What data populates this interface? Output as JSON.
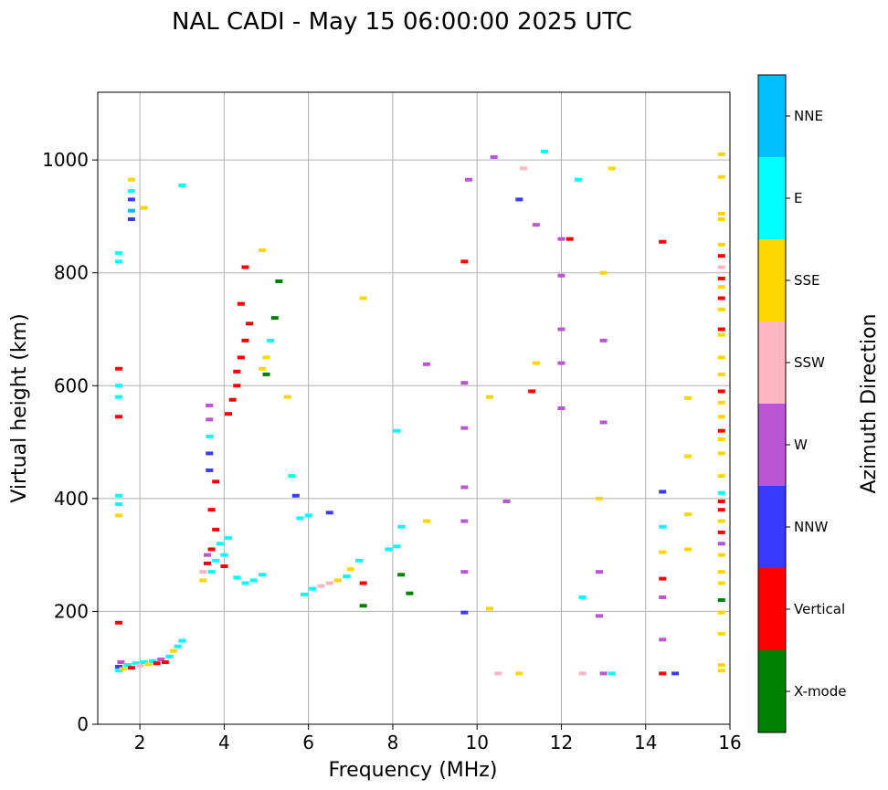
{
  "chart_data": {
    "type": "scatter",
    "title": "NAL CADI - May 15 06:00:00 2025 UTC",
    "xlabel": "Frequency (MHz)",
    "ylabel": "Virtual height (km)",
    "xlim": [
      1,
      16
    ],
    "ylim": [
      0,
      1120
    ],
    "xticks": [
      2,
      4,
      6,
      8,
      10,
      12,
      14,
      16
    ],
    "yticks": [
      0,
      200,
      400,
      600,
      800,
      1000
    ],
    "grid": true,
    "colorbar": {
      "label": "Azimuth Direction",
      "categories": [
        {
          "name": "X-mode",
          "color": "#008000"
        },
        {
          "name": "Vertical",
          "color": "#ff0000"
        },
        {
          "name": "NNW",
          "color": "#3a3aff"
        },
        {
          "name": "W",
          "color": "#ba55d3"
        },
        {
          "name": "SSW",
          "color": "#ffb6c1"
        },
        {
          "name": "SSE",
          "color": "#ffd700"
        },
        {
          "name": "E",
          "color": "#00ffff"
        },
        {
          "name": "NNE",
          "color": "#00bfff"
        }
      ]
    },
    "points": [
      {
        "f": 1.5,
        "h": 95,
        "c": "E"
      },
      {
        "f": 1.5,
        "h": 102,
        "c": "NNW"
      },
      {
        "f": 1.55,
        "h": 110,
        "c": "W"
      },
      {
        "f": 1.6,
        "h": 98,
        "c": "SSE"
      },
      {
        "f": 1.7,
        "h": 105,
        "c": "E"
      },
      {
        "f": 1.8,
        "h": 100,
        "c": "Vertical"
      },
      {
        "f": 1.9,
        "h": 108,
        "c": "E"
      },
      {
        "f": 2.0,
        "h": 104,
        "c": "SSW"
      },
      {
        "f": 2.1,
        "h": 110,
        "c": "E"
      },
      {
        "f": 2.2,
        "h": 106,
        "c": "SSE"
      },
      {
        "f": 2.3,
        "h": 112,
        "c": "E"
      },
      {
        "f": 2.4,
        "h": 108,
        "c": "Vertical"
      },
      {
        "f": 2.5,
        "h": 115,
        "c": "W"
      },
      {
        "f": 2.6,
        "h": 110,
        "c": "Vertical"
      },
      {
        "f": 2.7,
        "h": 120,
        "c": "E"
      },
      {
        "f": 2.8,
        "h": 130,
        "c": "SSE"
      },
      {
        "f": 2.9,
        "h": 138,
        "c": "E"
      },
      {
        "f": 3.0,
        "h": 148,
        "c": "E"
      },
      {
        "f": 1.5,
        "h": 180,
        "c": "Vertical"
      },
      {
        "f": 1.5,
        "h": 370,
        "c": "SSE"
      },
      {
        "f": 1.5,
        "h": 390,
        "c": "E"
      },
      {
        "f": 1.5,
        "h": 405,
        "c": "E"
      },
      {
        "f": 1.5,
        "h": 580,
        "c": "E"
      },
      {
        "f": 1.5,
        "h": 600,
        "c": "E"
      },
      {
        "f": 1.5,
        "h": 630,
        "c": "Vertical"
      },
      {
        "f": 1.5,
        "h": 545,
        "c": "Vertical"
      },
      {
        "f": 1.5,
        "h": 820,
        "c": "E"
      },
      {
        "f": 1.5,
        "h": 835,
        "c": "E"
      },
      {
        "f": 1.8,
        "h": 895,
        "c": "NNW"
      },
      {
        "f": 1.8,
        "h": 910,
        "c": "NNE"
      },
      {
        "f": 1.8,
        "h": 930,
        "c": "NNW"
      },
      {
        "f": 1.8,
        "h": 945,
        "c": "E"
      },
      {
        "f": 1.8,
        "h": 965,
        "c": "SSE"
      },
      {
        "f": 2.1,
        "h": 915,
        "c": "SSE"
      },
      {
        "f": 3.0,
        "h": 955,
        "c": "E"
      },
      {
        "f": 3.5,
        "h": 255,
        "c": "SSE"
      },
      {
        "f": 3.5,
        "h": 270,
        "c": "SSW"
      },
      {
        "f": 3.6,
        "h": 285,
        "c": "Vertical"
      },
      {
        "f": 3.6,
        "h": 300,
        "c": "W"
      },
      {
        "f": 3.7,
        "h": 270,
        "c": "E"
      },
      {
        "f": 3.7,
        "h": 310,
        "c": "Vertical"
      },
      {
        "f": 3.8,
        "h": 290,
        "c": "E"
      },
      {
        "f": 3.9,
        "h": 320,
        "c": "E"
      },
      {
        "f": 4.0,
        "h": 280,
        "c": "Vertical"
      },
      {
        "f": 4.0,
        "h": 300,
        "c": "E"
      },
      {
        "f": 4.1,
        "h": 330,
        "c": "E"
      },
      {
        "f": 3.8,
        "h": 345,
        "c": "Vertical"
      },
      {
        "f": 3.7,
        "h": 380,
        "c": "Vertical"
      },
      {
        "f": 3.65,
        "h": 450,
        "c": "NNW"
      },
      {
        "f": 3.65,
        "h": 480,
        "c": "NNW"
      },
      {
        "f": 3.65,
        "h": 510,
        "c": "E"
      },
      {
        "f": 3.65,
        "h": 540,
        "c": "W"
      },
      {
        "f": 3.65,
        "h": 565,
        "c": "W"
      },
      {
        "f": 3.8,
        "h": 430,
        "c": "Vertical"
      },
      {
        "f": 4.1,
        "h": 550,
        "c": "Vertical"
      },
      {
        "f": 4.2,
        "h": 575,
        "c": "Vertical"
      },
      {
        "f": 4.3,
        "h": 600,
        "c": "Vertical"
      },
      {
        "f": 4.3,
        "h": 625,
        "c": "Vertical"
      },
      {
        "f": 4.4,
        "h": 650,
        "c": "Vertical"
      },
      {
        "f": 4.5,
        "h": 680,
        "c": "Vertical"
      },
      {
        "f": 4.6,
        "h": 710,
        "c": "Vertical"
      },
      {
        "f": 4.4,
        "h": 745,
        "c": "Vertical"
      },
      {
        "f": 4.5,
        "h": 810,
        "c": "Vertical"
      },
      {
        "f": 4.3,
        "h": 260,
        "c": "E"
      },
      {
        "f": 4.5,
        "h": 250,
        "c": "E"
      },
      {
        "f": 4.7,
        "h": 255,
        "c": "E"
      },
      {
        "f": 4.9,
        "h": 265,
        "c": "E"
      },
      {
        "f": 4.9,
        "h": 630,
        "c": "SSE"
      },
      {
        "f": 5.0,
        "h": 650,
        "c": "SSE"
      },
      {
        "f": 5.1,
        "h": 680,
        "c": "E"
      },
      {
        "f": 5.2,
        "h": 720,
        "c": "X-mode"
      },
      {
        "f": 5.0,
        "h": 620,
        "c": "X-mode"
      },
      {
        "f": 4.9,
        "h": 840,
        "c": "SSE"
      },
      {
        "f": 5.3,
        "h": 785,
        "c": "X-mode"
      },
      {
        "f": 5.5,
        "h": 580,
        "c": "SSE"
      },
      {
        "f": 5.6,
        "h": 440,
        "c": "E"
      },
      {
        "f": 5.7,
        "h": 405,
        "c": "NNW"
      },
      {
        "f": 5.8,
        "h": 365,
        "c": "E"
      },
      {
        "f": 6.0,
        "h": 370,
        "c": "E"
      },
      {
        "f": 5.9,
        "h": 230,
        "c": "E"
      },
      {
        "f": 6.1,
        "h": 240,
        "c": "E"
      },
      {
        "f": 6.3,
        "h": 245,
        "c": "SSW"
      },
      {
        "f": 6.5,
        "h": 250,
        "c": "SSW"
      },
      {
        "f": 6.7,
        "h": 255,
        "c": "SSE"
      },
      {
        "f": 6.9,
        "h": 262,
        "c": "E"
      },
      {
        "f": 7.0,
        "h": 275,
        "c": "SSE"
      },
      {
        "f": 7.2,
        "h": 290,
        "c": "E"
      },
      {
        "f": 7.3,
        "h": 210,
        "c": "X-mode"
      },
      {
        "f": 7.3,
        "h": 250,
        "c": "Vertical"
      },
      {
        "f": 6.5,
        "h": 375,
        "c": "NNW"
      },
      {
        "f": 7.3,
        "h": 755,
        "c": "SSE"
      },
      {
        "f": 7.9,
        "h": 310,
        "c": "E"
      },
      {
        "f": 8.1,
        "h": 315,
        "c": "E"
      },
      {
        "f": 8.2,
        "h": 350,
        "c": "E"
      },
      {
        "f": 8.1,
        "h": 520,
        "c": "E"
      },
      {
        "f": 8.2,
        "h": 265,
        "c": "X-mode"
      },
      {
        "f": 8.4,
        "h": 232,
        "c": "X-mode"
      },
      {
        "f": 8.8,
        "h": 360,
        "c": "SSE"
      },
      {
        "f": 8.8,
        "h": 638,
        "c": "W"
      },
      {
        "f": 9.7,
        "h": 198,
        "c": "NNW"
      },
      {
        "f": 9.7,
        "h": 270,
        "c": "W"
      },
      {
        "f": 9.7,
        "h": 360,
        "c": "W"
      },
      {
        "f": 9.7,
        "h": 420,
        "c": "W"
      },
      {
        "f": 9.7,
        "h": 525,
        "c": "W"
      },
      {
        "f": 9.7,
        "h": 605,
        "c": "W"
      },
      {
        "f": 9.7,
        "h": 820,
        "c": "Vertical"
      },
      {
        "f": 9.8,
        "h": 965,
        "c": "W"
      },
      {
        "f": 10.4,
        "h": 1005,
        "c": "W"
      },
      {
        "f": 10.7,
        "h": 395,
        "c": "W"
      },
      {
        "f": 11.1,
        "h": 985,
        "c": "SSW"
      },
      {
        "f": 11.3,
        "h": 590,
        "c": "Vertical"
      },
      {
        "f": 11.4,
        "h": 640,
        "c": "SSE"
      },
      {
        "f": 11.4,
        "h": 885,
        "c": "W"
      },
      {
        "f": 11.6,
        "h": 1015,
        "c": "E"
      },
      {
        "f": 11.0,
        "h": 930,
        "c": "NNW"
      },
      {
        "f": 12.0,
        "h": 560,
        "c": "W"
      },
      {
        "f": 12.0,
        "h": 640,
        "c": "W"
      },
      {
        "f": 12.0,
        "h": 700,
        "c": "W"
      },
      {
        "f": 12.0,
        "h": 795,
        "c": "W"
      },
      {
        "f": 12.0,
        "h": 860,
        "c": "W"
      },
      {
        "f": 12.2,
        "h": 860,
        "c": "Vertical"
      },
      {
        "f": 12.4,
        "h": 965,
        "c": "E"
      },
      {
        "f": 12.5,
        "h": 90,
        "c": "SSW"
      },
      {
        "f": 12.5,
        "h": 225,
        "c": "E"
      },
      {
        "f": 12.9,
        "h": 400,
        "c": "SSE"
      },
      {
        "f": 13.0,
        "h": 535,
        "c": "W"
      },
      {
        "f": 13.0,
        "h": 680,
        "c": "W"
      },
      {
        "f": 13.0,
        "h": 800,
        "c": "SSE"
      },
      {
        "f": 13.2,
        "h": 985,
        "c": "SSE"
      },
      {
        "f": 13.0,
        "h": 90,
        "c": "W"
      },
      {
        "f": 13.2,
        "h": 90,
        "c": "E"
      },
      {
        "f": 12.9,
        "h": 270,
        "c": "W"
      },
      {
        "f": 12.9,
        "h": 192,
        "c": "W"
      },
      {
        "f": 14.4,
        "h": 412,
        "c": "NNW"
      },
      {
        "f": 14.4,
        "h": 350,
        "c": "E"
      },
      {
        "f": 14.4,
        "h": 305,
        "c": "SSE"
      },
      {
        "f": 14.4,
        "h": 258,
        "c": "Vertical"
      },
      {
        "f": 14.4,
        "h": 225,
        "c": "W"
      },
      {
        "f": 14.4,
        "h": 150,
        "c": "W"
      },
      {
        "f": 14.4,
        "h": 90,
        "c": "Vertical"
      },
      {
        "f": 14.7,
        "h": 90,
        "c": "NNW"
      },
      {
        "f": 14.4,
        "h": 855,
        "c": "Vertical"
      },
      {
        "f": 15.0,
        "h": 310,
        "c": "SSE"
      },
      {
        "f": 15.0,
        "h": 372,
        "c": "SSE"
      },
      {
        "f": 15.0,
        "h": 475,
        "c": "SSE"
      },
      {
        "f": 15.0,
        "h": 578,
        "c": "SSE"
      },
      {
        "f": 15.8,
        "h": 95,
        "c": "SSE"
      },
      {
        "f": 15.8,
        "h": 105,
        "c": "SSE"
      },
      {
        "f": 15.8,
        "h": 160,
        "c": "SSE"
      },
      {
        "f": 15.8,
        "h": 198,
        "c": "SSE"
      },
      {
        "f": 15.8,
        "h": 220,
        "c": "X-mode"
      },
      {
        "f": 15.8,
        "h": 250,
        "c": "SSE"
      },
      {
        "f": 15.8,
        "h": 270,
        "c": "SSE"
      },
      {
        "f": 15.8,
        "h": 300,
        "c": "SSE"
      },
      {
        "f": 15.8,
        "h": 320,
        "c": "W"
      },
      {
        "f": 15.8,
        "h": 340,
        "c": "Vertical"
      },
      {
        "f": 15.8,
        "h": 360,
        "c": "SSE"
      },
      {
        "f": 15.8,
        "h": 380,
        "c": "Vertical"
      },
      {
        "f": 15.8,
        "h": 395,
        "c": "Vertical"
      },
      {
        "f": 15.8,
        "h": 410,
        "c": "E"
      },
      {
        "f": 15.8,
        "h": 440,
        "c": "SSE"
      },
      {
        "f": 15.8,
        "h": 480,
        "c": "SSE"
      },
      {
        "f": 15.8,
        "h": 505,
        "c": "SSE"
      },
      {
        "f": 15.8,
        "h": 520,
        "c": "Vertical"
      },
      {
        "f": 15.8,
        "h": 545,
        "c": "SSE"
      },
      {
        "f": 15.8,
        "h": 570,
        "c": "SSE"
      },
      {
        "f": 15.8,
        "h": 590,
        "c": "Vertical"
      },
      {
        "f": 15.8,
        "h": 620,
        "c": "SSE"
      },
      {
        "f": 15.8,
        "h": 650,
        "c": "SSE"
      },
      {
        "f": 15.8,
        "h": 690,
        "c": "SSE"
      },
      {
        "f": 15.8,
        "h": 700,
        "c": "Vertical"
      },
      {
        "f": 15.8,
        "h": 735,
        "c": "SSE"
      },
      {
        "f": 15.8,
        "h": 755,
        "c": "Vertical"
      },
      {
        "f": 15.8,
        "h": 775,
        "c": "SSE"
      },
      {
        "f": 15.8,
        "h": 790,
        "c": "Vertical"
      },
      {
        "f": 15.8,
        "h": 810,
        "c": "SSW"
      },
      {
        "f": 15.8,
        "h": 830,
        "c": "Vertical"
      },
      {
        "f": 15.8,
        "h": 850,
        "c": "SSE"
      },
      {
        "f": 15.8,
        "h": 895,
        "c": "SSE"
      },
      {
        "f": 15.8,
        "h": 905,
        "c": "SSE"
      },
      {
        "f": 15.8,
        "h": 970,
        "c": "SSE"
      },
      {
        "f": 15.8,
        "h": 1010,
        "c": "SSE"
      },
      {
        "f": 10.3,
        "h": 205,
        "c": "SSE"
      },
      {
        "f": 10.5,
        "h": 90,
        "c": "SSW"
      },
      {
        "f": 11.0,
        "h": 90,
        "c": "SSE"
      },
      {
        "f": 10.3,
        "h": 580,
        "c": "SSE"
      }
    ]
  }
}
